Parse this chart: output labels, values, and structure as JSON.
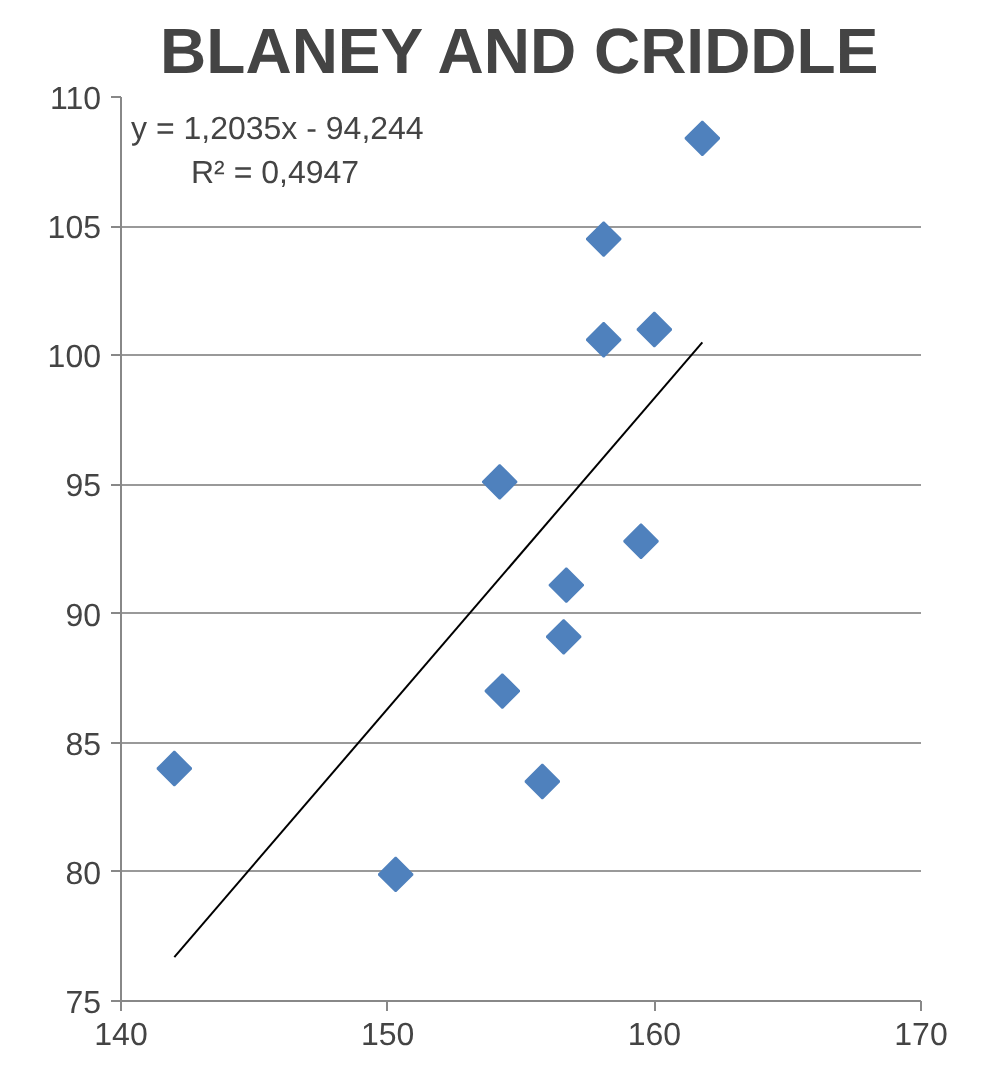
{
  "chart_data": {
    "type": "scatter",
    "title": "BLANEY AND CRIDDLE",
    "annotations": [
      "y = 1,2035x - 94,244",
      "R² = 0,4947"
    ],
    "series": [
      {
        "color": "#4f81bd",
        "x": [
          142,
          150.3,
          154.2,
          154.3,
          155.8,
          156.6,
          156.7,
          158.1,
          158.1,
          159.5,
          160,
          161.8
        ],
        "values": [
          84.0,
          79.9,
          95.1,
          87.0,
          83.5,
          89.1,
          91.1,
          104.5,
          100.6,
          92.8,
          101,
          108.4
        ]
      },
      {
        "type": "line",
        "color": "#000000",
        "marker": "none",
        "x": [
          142,
          161.8
        ],
        "values": [
          76.7,
          100.5
        ]
      }
    ],
    "xlim": [
      140,
      170
    ],
    "xticks": [
      140,
      150,
      160,
      170
    ],
    "ylim": [
      75,
      110
    ],
    "yticks": [
      75,
      80,
      85,
      90,
      95,
      100,
      105,
      110
    ],
    "grid": "y",
    "marker": "diamond"
  }
}
